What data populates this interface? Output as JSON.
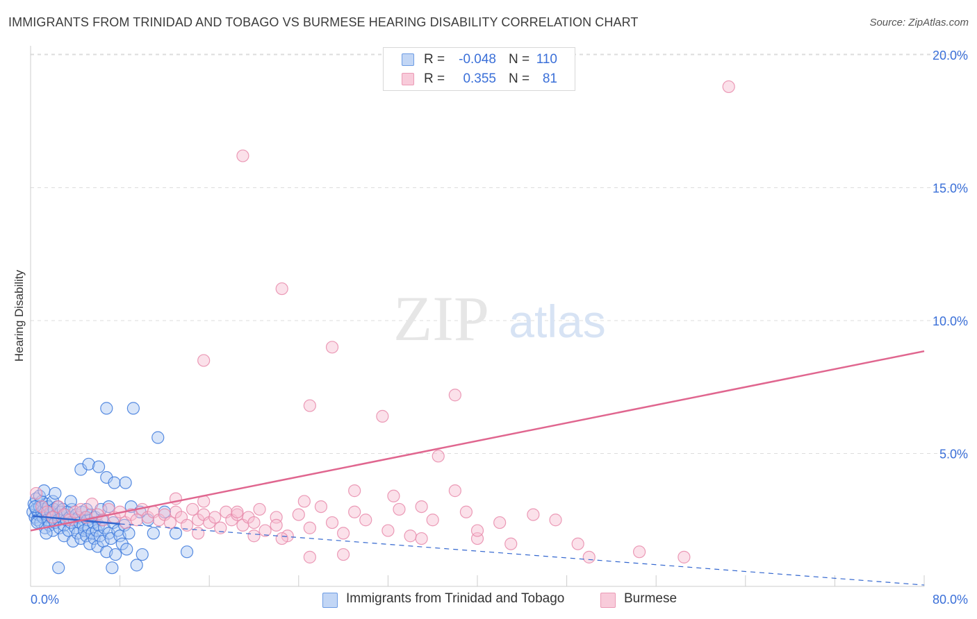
{
  "header": {
    "title": "IMMIGRANTS FROM TRINIDAD AND TOBAGO VS BURMESE HEARING DISABILITY CORRELATION CHART",
    "source": "Source: ZipAtlas.com"
  },
  "watermark": {
    "zip": "ZIP",
    "atlas": "atlas"
  },
  "stats_legend": {
    "rows": [
      {
        "r_label": "R =",
        "r_value": "-0.048",
        "n_label": "N =",
        "n_value": "110"
      },
      {
        "r_label": "R =",
        "r_value": "0.355",
        "n_label": "N =",
        "n_value": "81"
      }
    ]
  },
  "bottom_legend": {
    "items": [
      {
        "label": "Immigrants from Trinidad and Tobago"
      },
      {
        "label": "Burmese"
      }
    ]
  },
  "colors": {
    "blue_fill": "#a9c6f2",
    "blue_stroke": "#3b78dc",
    "blue_line": "#3266cf",
    "pink_fill": "#f6bcd0",
    "pink_stroke": "#e88aaa",
    "pink_line": "#e0668f",
    "tick_label": "#3a6fd8",
    "grid": "#dcdcdc"
  },
  "chart_data": {
    "type": "scatter",
    "title": "IMMIGRANTS FROM TRINIDAD AND TOBAGO VS BURMESE HEARING DISABILITY CORRELATION CHART",
    "xlabel": "",
    "ylabel": "Hearing Disability",
    "xlim": [
      0,
      80
    ],
    "ylim": [
      0,
      20.5
    ],
    "x_tick_labels": [
      {
        "value": 0,
        "label": "0.0%"
      },
      {
        "value": 80,
        "label": "80.0%"
      }
    ],
    "x_minor_ticks": [
      0,
      8,
      16,
      24,
      32,
      40,
      48,
      56,
      64,
      72,
      80
    ],
    "y_ticks": [
      {
        "value": 5,
        "label": "5.0%"
      },
      {
        "value": 10,
        "label": "10.0%"
      },
      {
        "value": 15,
        "label": "15.0%"
      },
      {
        "value": 20,
        "label": "20.0%"
      }
    ],
    "series": [
      {
        "name": "Immigrants from Trinidad and Tobago",
        "color": "blue",
        "r": -0.048,
        "n": 110,
        "trend_solid": {
          "x": [
            0.2,
            8
          ],
          "y": [
            2.65,
            2.35
          ]
        },
        "trend_dashed": {
          "x": [
            8,
            80
          ],
          "y": [
            2.35,
            0.05
          ]
        },
        "points": [
          [
            0.2,
            2.8
          ],
          [
            0.3,
            3.1
          ],
          [
            0.4,
            2.6
          ],
          [
            0.5,
            2.9
          ],
          [
            0.5,
            3.3
          ],
          [
            0.6,
            2.5
          ],
          [
            0.7,
            2.7
          ],
          [
            0.8,
            3.0
          ],
          [
            0.9,
            2.4
          ],
          [
            1.0,
            2.8
          ],
          [
            1.0,
            3.2
          ],
          [
            1.1,
            2.6
          ],
          [
            1.2,
            2.9
          ],
          [
            1.3,
            2.2
          ],
          [
            1.4,
            3.1
          ],
          [
            1.5,
            2.7
          ],
          [
            1.5,
            2.5
          ],
          [
            1.6,
            3.0
          ],
          [
            1.7,
            2.3
          ],
          [
            1.8,
            2.8
          ],
          [
            1.9,
            2.6
          ],
          [
            2.0,
            3.2
          ],
          [
            2.0,
            2.1
          ],
          [
            2.1,
            2.9
          ],
          [
            2.2,
            2.4
          ],
          [
            2.3,
            2.7
          ],
          [
            2.4,
            3.0
          ],
          [
            2.5,
            2.5
          ],
          [
            2.6,
            2.2
          ],
          [
            2.7,
            2.8
          ],
          [
            2.8,
            2.6
          ],
          [
            2.9,
            2.9
          ],
          [
            3.0,
            2.3
          ],
          [
            3.0,
            1.9
          ],
          [
            3.1,
            2.7
          ],
          [
            3.2,
            2.5
          ],
          [
            3.3,
            2.8
          ],
          [
            3.4,
            2.1
          ],
          [
            3.5,
            2.6
          ],
          [
            3.6,
            2.4
          ],
          [
            3.7,
            2.9
          ],
          [
            3.8,
            1.7
          ],
          [
            3.9,
            2.5
          ],
          [
            4.0,
            2.2
          ],
          [
            4.1,
            2.7
          ],
          [
            4.2,
            2.0
          ],
          [
            4.3,
            2.6
          ],
          [
            4.4,
            2.4
          ],
          [
            4.5,
            1.8
          ],
          [
            4.6,
            2.8
          ],
          [
            4.7,
            2.3
          ],
          [
            4.8,
            2.1
          ],
          [
            4.9,
            2.6
          ],
          [
            5.0,
            1.9
          ],
          [
            5.1,
            2.5
          ],
          [
            5.2,
            2.2
          ],
          [
            5.3,
            1.6
          ],
          [
            5.4,
            2.7
          ],
          [
            5.5,
            2.0
          ],
          [
            5.6,
            2.4
          ],
          [
            5.7,
            1.8
          ],
          [
            5.8,
            2.6
          ],
          [
            5.9,
            2.1
          ],
          [
            6.0,
            1.5
          ],
          [
            6.1,
            2.3
          ],
          [
            6.2,
            1.9
          ],
          [
            6.4,
            2.5
          ],
          [
            6.5,
            1.7
          ],
          [
            6.6,
            2.2
          ],
          [
            6.8,
            1.3
          ],
          [
            7.0,
            2.0
          ],
          [
            7.2,
            1.8
          ],
          [
            7.4,
            2.4
          ],
          [
            7.6,
            1.2
          ],
          [
            7.8,
            2.1
          ],
          [
            8.0,
            1.9
          ],
          [
            8.2,
            1.6
          ],
          [
            8.4,
            2.3
          ],
          [
            8.6,
            1.4
          ],
          [
            8.8,
            2.0
          ],
          [
            4.5,
            4.4
          ],
          [
            5.2,
            4.6
          ],
          [
            6.1,
            4.5
          ],
          [
            6.8,
            4.1
          ],
          [
            7.5,
            3.9
          ],
          [
            6.8,
            6.7
          ],
          [
            9.2,
            6.7
          ],
          [
            11.4,
            5.6
          ],
          [
            8.5,
            3.9
          ],
          [
            9.0,
            3.0
          ],
          [
            9.8,
            2.8
          ],
          [
            10.5,
            2.5
          ],
          [
            11.0,
            2.0
          ],
          [
            12.0,
            2.8
          ],
          [
            13.0,
            2.0
          ],
          [
            14.0,
            1.3
          ],
          [
            10.0,
            1.2
          ],
          [
            9.5,
            0.8
          ],
          [
            7.3,
            0.7
          ],
          [
            2.5,
            0.7
          ],
          [
            0.8,
            3.4
          ],
          [
            1.2,
            3.6
          ],
          [
            0.4,
            3.0
          ],
          [
            0.6,
            2.4
          ],
          [
            1.4,
            2.0
          ],
          [
            2.2,
            3.5
          ],
          [
            3.6,
            3.2
          ],
          [
            5.0,
            2.9
          ],
          [
            6.3,
            2.9
          ],
          [
            7.0,
            3.0
          ]
        ]
      },
      {
        "name": "Burmese",
        "color": "pink",
        "r": 0.355,
        "n": 81,
        "trend": {
          "x": [
            0,
            80
          ],
          "y": [
            2.1,
            8.85
          ]
        },
        "points": [
          [
            0.5,
            3.5
          ],
          [
            1.0,
            3.0
          ],
          [
            1.5,
            2.8
          ],
          [
            2.0,
            2.6
          ],
          [
            2.5,
            3.0
          ],
          [
            3.0,
            2.7
          ],
          [
            3.5,
            2.5
          ],
          [
            4.0,
            2.8
          ],
          [
            4.5,
            2.9
          ],
          [
            5.0,
            2.6
          ],
          [
            5.5,
            3.1
          ],
          [
            6.0,
            2.7
          ],
          [
            6.5,
            2.5
          ],
          [
            7.0,
            2.9
          ],
          [
            7.5,
            2.6
          ],
          [
            8.0,
            2.8
          ],
          [
            8.5,
            2.4
          ],
          [
            9.0,
            2.7
          ],
          [
            9.5,
            2.5
          ],
          [
            10.0,
            2.9
          ],
          [
            10.5,
            2.6
          ],
          [
            11.0,
            2.8
          ],
          [
            11.5,
            2.5
          ],
          [
            12.0,
            2.7
          ],
          [
            12.5,
            2.4
          ],
          [
            13.0,
            2.8
          ],
          [
            13.5,
            2.6
          ],
          [
            14.0,
            2.3
          ],
          [
            14.5,
            2.9
          ],
          [
            15.0,
            2.5
          ],
          [
            15.5,
            2.7
          ],
          [
            16.0,
            2.4
          ],
          [
            16.5,
            2.6
          ],
          [
            17.0,
            2.2
          ],
          [
            17.5,
            2.8
          ],
          [
            18.0,
            2.5
          ],
          [
            18.5,
            2.7
          ],
          [
            19.0,
            2.3
          ],
          [
            19.5,
            2.6
          ],
          [
            20.0,
            2.4
          ],
          [
            20.5,
            2.9
          ],
          [
            21.0,
            2.1
          ],
          [
            22.0,
            2.6
          ],
          [
            23.0,
            1.9
          ],
          [
            24.0,
            2.7
          ],
          [
            25.0,
            2.2
          ],
          [
            26.0,
            3.0
          ],
          [
            27.0,
            2.4
          ],
          [
            28.0,
            2.0
          ],
          [
            29.0,
            2.8
          ],
          [
            30.0,
            2.5
          ],
          [
            32.0,
            2.1
          ],
          [
            33.0,
            2.9
          ],
          [
            34.0,
            1.9
          ],
          [
            36.0,
            2.5
          ],
          [
            13.0,
            3.3
          ],
          [
            18.5,
            2.8
          ],
          [
            25.0,
            1.1
          ],
          [
            28.0,
            1.2
          ],
          [
            32.5,
            3.4
          ],
          [
            22.5,
            1.8
          ],
          [
            20.0,
            1.9
          ],
          [
            15.0,
            2.0
          ],
          [
            35.0,
            1.8
          ],
          [
            39.0,
            2.8
          ],
          [
            40.0,
            1.8
          ],
          [
            42.0,
            2.4
          ],
          [
            43.0,
            1.6
          ],
          [
            45.0,
            2.7
          ],
          [
            47.0,
            2.5
          ],
          [
            49.0,
            1.6
          ],
          [
            50.0,
            1.1
          ],
          [
            31.5,
            6.4
          ],
          [
            29.0,
            3.6
          ],
          [
            35.0,
            3.0
          ],
          [
            36.5,
            4.9
          ],
          [
            40.0,
            2.1
          ],
          [
            38.0,
            3.6
          ],
          [
            15.5,
            3.2
          ],
          [
            22.0,
            2.3
          ],
          [
            24.5,
            3.2
          ]
        ],
        "outliers": [
          [
            62.5,
            18.8
          ],
          [
            19.0,
            16.2
          ],
          [
            22.5,
            11.2
          ],
          [
            27.0,
            9.0
          ],
          [
            15.5,
            8.5
          ],
          [
            25.0,
            6.8
          ],
          [
            38.0,
            7.2
          ],
          [
            58.5,
            1.1
          ],
          [
            54.5,
            1.3
          ]
        ]
      }
    ]
  }
}
